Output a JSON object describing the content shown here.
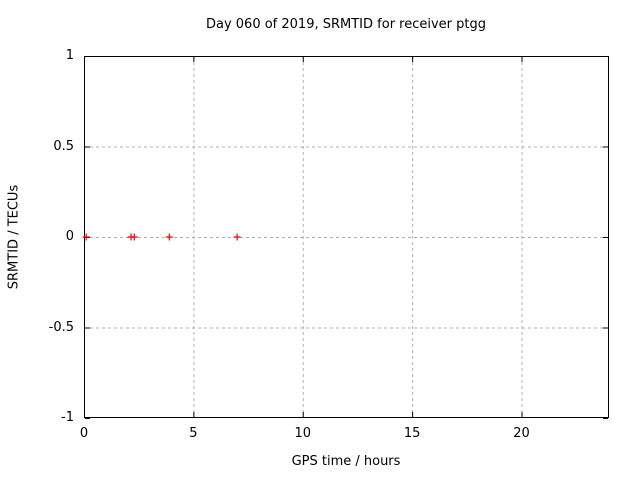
{
  "chart_data": {
    "type": "scatter",
    "title": "Day 060 of 2019, SRMTID for receiver ptgg",
    "xlabel": "GPS time / hours",
    "ylabel": "SRMTID / TECUs",
    "xlim": [
      0,
      24
    ],
    "ylim": [
      -1,
      1
    ],
    "xticks": [
      {
        "v": 0,
        "label": "0"
      },
      {
        "v": 5,
        "label": "5"
      },
      {
        "v": 10,
        "label": "10"
      },
      {
        "v": 15,
        "label": "15"
      },
      {
        "v": 20,
        "label": "20"
      }
    ],
    "yticks": [
      {
        "v": 1,
        "label": "1"
      },
      {
        "v": 0.5,
        "label": "0.5"
      },
      {
        "v": 0,
        "label": "0"
      },
      {
        "v": -0.5,
        "label": "-0.5"
      },
      {
        "v": -1,
        "label": "-1"
      }
    ],
    "grid": true,
    "legend": false,
    "series": [
      {
        "name": "SRMTID",
        "marker": "plus",
        "color": "#ff0000",
        "points": [
          [
            0.1,
            0
          ],
          [
            2.15,
            0
          ],
          [
            2.3,
            0
          ],
          [
            3.9,
            0
          ],
          [
            7.0,
            0
          ]
        ]
      }
    ],
    "colors": {
      "marker": "#ff0000",
      "grid": "#b0b0b0",
      "border": "#000000",
      "text": "#000000",
      "background": "#ffffff"
    }
  }
}
